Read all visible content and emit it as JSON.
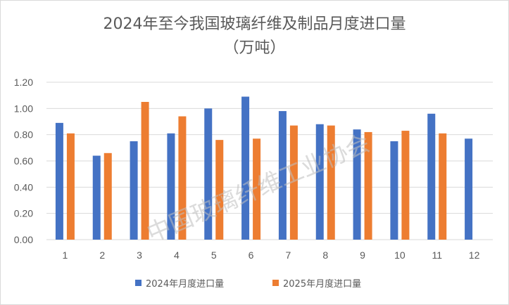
{
  "chart_data": {
    "type": "bar",
    "title_line1": "2024年至今我国玻璃纤维及制品月度进口量",
    "title_line2": "（万吨）",
    "categories": [
      "1",
      "2",
      "3",
      "4",
      "5",
      "6",
      "7",
      "8",
      "9",
      "10",
      "11",
      "12"
    ],
    "series": [
      {
        "name": "2024年月度进口量",
        "color": "#4472c4",
        "values": [
          0.89,
          0.64,
          0.75,
          0.81,
          1.0,
          1.09,
          0.98,
          0.88,
          0.84,
          0.75,
          0.96,
          0.77
        ]
      },
      {
        "name": "2025年月度进口量",
        "color": "#ed7d31",
        "values": [
          0.81,
          0.66,
          1.05,
          0.94,
          0.76,
          0.77,
          0.87,
          0.87,
          0.82,
          0.83,
          0.81,
          null
        ]
      }
    ],
    "y_ticks": [
      "0.00",
      "0.20",
      "0.40",
      "0.60",
      "0.80",
      "1.00",
      "1.20"
    ],
    "ylim": [
      0,
      1.2
    ],
    "grid": true,
    "legend_position": "bottom",
    "watermark": "中国玻璃纤维工业协会"
  }
}
